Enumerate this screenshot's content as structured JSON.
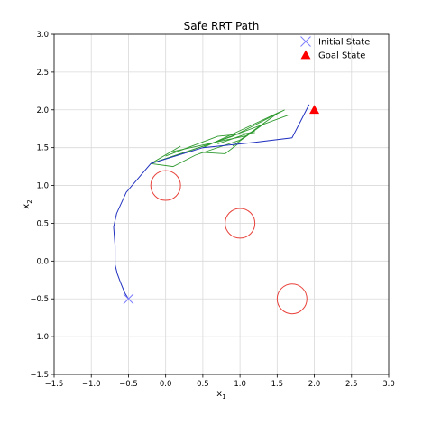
{
  "chart_data": {
    "type": "line",
    "title": "Safe RRT Path",
    "xlabel": "x",
    "xlabel_sub": "1",
    "ylabel": "x",
    "ylabel_sub": "2",
    "xlim": [
      -1.5,
      3.0
    ],
    "ylim": [
      -1.5,
      3.0
    ],
    "xticks": [
      -1.5,
      -1.0,
      -0.5,
      0.0,
      0.5,
      1.0,
      1.5,
      2.0,
      2.5,
      3.0
    ],
    "yticks": [
      -1.5,
      -1.0,
      -0.5,
      0.0,
      0.5,
      1.0,
      1.5,
      2.0,
      2.5,
      3.0
    ],
    "xtick_labels": [
      "−1.5",
      "−1.0",
      "−0.5",
      "0.0",
      "0.5",
      "1.0",
      "1.5",
      "2.0",
      "2.5",
      "3.0"
    ],
    "ytick_labels": [
      "−1.5",
      "−1.0",
      "−0.5",
      "0.0",
      "0.5",
      "1.0",
      "1.5",
      "2.0",
      "2.5",
      "3.0"
    ],
    "grid": true,
    "legend_position": "top-right",
    "colors": {
      "path": "#1f2fbf",
      "tree": "#2e9a2e",
      "obstacle": "#e8413a",
      "initial": "#7b7bff",
      "goal": "#ff0000"
    },
    "initial_state": {
      "label": "Initial State",
      "x": -0.5,
      "y": -0.5
    },
    "goal_state": {
      "label": "Goal State",
      "x": 2.0,
      "y": 2.0
    },
    "obstacles": [
      {
        "cx": 0.0,
        "cy": 1.0,
        "r": 0.2
      },
      {
        "cx": 1.0,
        "cy": 0.5,
        "r": 0.2
      },
      {
        "cx": 1.7,
        "cy": -0.5,
        "r": 0.2
      }
    ],
    "path": [
      [
        -0.5,
        -0.5
      ],
      [
        -0.55,
        -0.42
      ],
      [
        -0.6,
        -0.3
      ],
      [
        -0.65,
        -0.17
      ],
      [
        -0.68,
        -0.05
      ],
      [
        -0.68,
        0.2
      ],
      [
        -0.7,
        0.45
      ],
      [
        -0.66,
        0.63
      ],
      [
        -0.53,
        0.91
      ],
      [
        -0.2,
        1.29
      ],
      [
        0.5,
        1.5
      ],
      [
        1.2,
        1.57
      ],
      [
        1.7,
        1.63
      ],
      [
        1.93,
        2.07
      ]
    ],
    "tree_branches": [
      [
        [
          -0.2,
          1.29
        ],
        [
          0.9,
          1.65
        ],
        [
          1.6,
          2.0
        ]
      ],
      [
        [
          -0.2,
          1.29
        ],
        [
          0.6,
          1.55
        ],
        [
          1.65,
          1.93
        ]
      ],
      [
        [
          -0.2,
          1.29
        ],
        [
          0.2,
          1.52
        ]
      ],
      [
        [
          -0.2,
          1.29
        ],
        [
          0.1,
          1.25
        ],
        [
          0.4,
          1.4
        ],
        [
          1.0,
          1.6
        ],
        [
          1.5,
          1.95
        ]
      ],
      [
        [
          0.0,
          1.39
        ],
        [
          0.7,
          1.65
        ],
        [
          1.2,
          1.7
        ]
      ],
      [
        [
          0.1,
          1.45
        ],
        [
          0.8,
          1.6
        ],
        [
          1.1,
          1.66
        ]
      ],
      [
        [
          0.3,
          1.45
        ],
        [
          0.8,
          1.42
        ],
        [
          1.0,
          1.57
        ]
      ],
      [
        [
          0.5,
          1.5
        ],
        [
          0.9,
          1.68
        ],
        [
          1.55,
          1.98
        ]
      ],
      [
        [
          0.7,
          1.55
        ],
        [
          1.2,
          1.72
        ]
      ],
      [
        [
          0.9,
          1.52
        ],
        [
          1.3,
          1.8
        ]
      ]
    ]
  }
}
